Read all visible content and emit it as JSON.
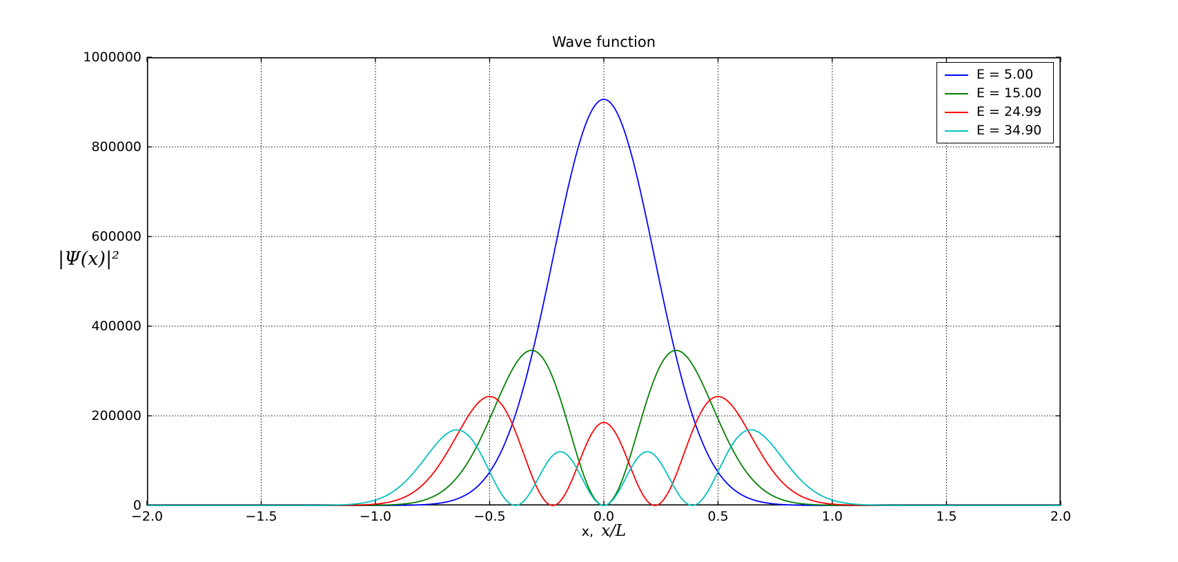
{
  "figure": {
    "background": "#ffffff"
  },
  "chart_data": {
    "type": "line",
    "title": "Wave function",
    "xlabel": {
      "prefix": "x,",
      "math": "x/L"
    },
    "ylabel": "|Ψ(x)|²",
    "xlim": [
      -2.0,
      2.0
    ],
    "ylim": [
      0,
      1000000
    ],
    "grid": "dotted",
    "legend_position": "upper right",
    "xticks": {
      "values": [
        -2.0,
        -1.5,
        -1.0,
        -0.5,
        0.0,
        0.5,
        1.0,
        1.5,
        2.0
      ],
      "labels": [
        "−2.0",
        "−1.5",
        "−1.0",
        "−0.5",
        "0.0",
        "0.5",
        "1.0",
        "1.5",
        "2.0"
      ]
    },
    "yticks": {
      "values": [
        0,
        200000,
        400000,
        600000,
        800000,
        1000000
      ],
      "labels": [
        "0",
        "200000",
        "400000",
        "600000",
        "800000",
        "1000000"
      ]
    },
    "series": [
      {
        "label": "E = 5.00",
        "energy": 5.0,
        "color": "#0000ff",
        "model": {
          "kind": "harmonic_oscillator_probability_density",
          "n": 0,
          "alpha": 10,
          "scale": 906000
        },
        "peaks": [
          {
            "x": 0.0,
            "y": 906000
          }
        ],
        "nodes": []
      },
      {
        "label": "E = 15.00",
        "energy": 15.0,
        "color": "#007f00",
        "model": {
          "kind": "harmonic_oscillator_probability_density",
          "n": 1,
          "alpha": 10,
          "scale": 940500
        },
        "peaks": [
          {
            "x": -0.316,
            "y": 346000
          },
          {
            "x": 0.316,
            "y": 346000
          }
        ],
        "nodes": [
          0.0
        ]
      },
      {
        "label": "E = 24.99",
        "energy": 24.99,
        "color": "#ff0000",
        "model": {
          "kind": "harmonic_oscillator_probability_density",
          "n": 2,
          "alpha": 10,
          "scale": 185000
        },
        "peaks": [
          {
            "x": -0.5,
            "y": 243000
          },
          {
            "x": 0.0,
            "y": 185000
          },
          {
            "x": 0.5,
            "y": 243000
          }
        ],
        "nodes": [
          -0.224,
          0.224
        ]
      },
      {
        "label": "E = 34.90",
        "energy": 34.9,
        "color": "#00bfbf",
        "model": {
          "kind": "harmonic_oscillator_probability_density",
          "n": 3,
          "alpha": 10,
          "scale": 91800
        },
        "peaks": [
          {
            "x": -0.643,
            "y": 169000
          },
          {
            "x": -0.204,
            "y": 118500
          },
          {
            "x": 0.204,
            "y": 118500
          },
          {
            "x": 0.643,
            "y": 169000
          }
        ],
        "nodes": [
          -0.387,
          0.0,
          0.387
        ]
      }
    ]
  }
}
